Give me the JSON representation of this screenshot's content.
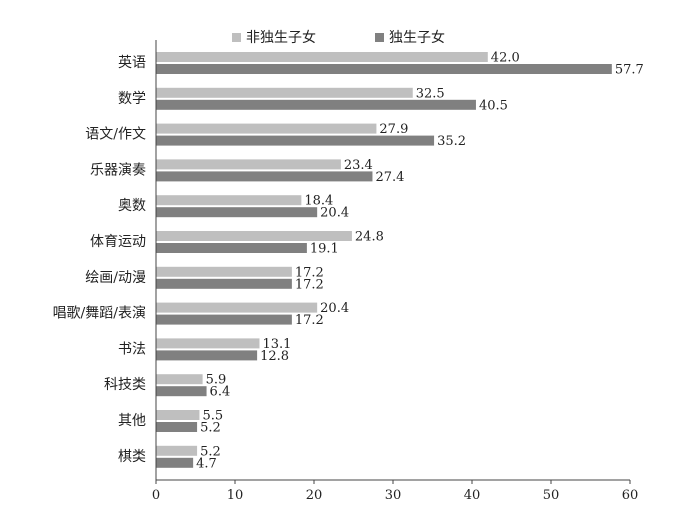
{
  "chart_data": {
    "type": "bar",
    "orientation": "horizontal",
    "categories": [
      "英语",
      "数学",
      "语文/作文",
      "乐器演奏",
      "奥数",
      "体育运动",
      "绘画/动漫",
      "唱歌/舞蹈/表演",
      "书法",
      "科技类",
      "其他",
      "棋类"
    ],
    "series": [
      {
        "name": "非独生子女",
        "color": "#bfbfbf",
        "values": [
          42.0,
          32.5,
          27.9,
          23.4,
          18.4,
          24.8,
          17.2,
          20.4,
          13.1,
          5.9,
          5.5,
          5.2
        ]
      },
      {
        "name": "独生子女",
        "color": "#808080",
        "values": [
          57.7,
          40.5,
          35.2,
          27.4,
          20.4,
          19.1,
          17.2,
          17.2,
          12.8,
          6.4,
          5.2,
          4.7
        ]
      }
    ],
    "xlim": [
      0,
      60
    ],
    "xticks": [
      "0",
      "10",
      "20",
      "30",
      "40",
      "50",
      "60"
    ],
    "legend_position": "top-center",
    "grid": false,
    "value_labels": true
  }
}
